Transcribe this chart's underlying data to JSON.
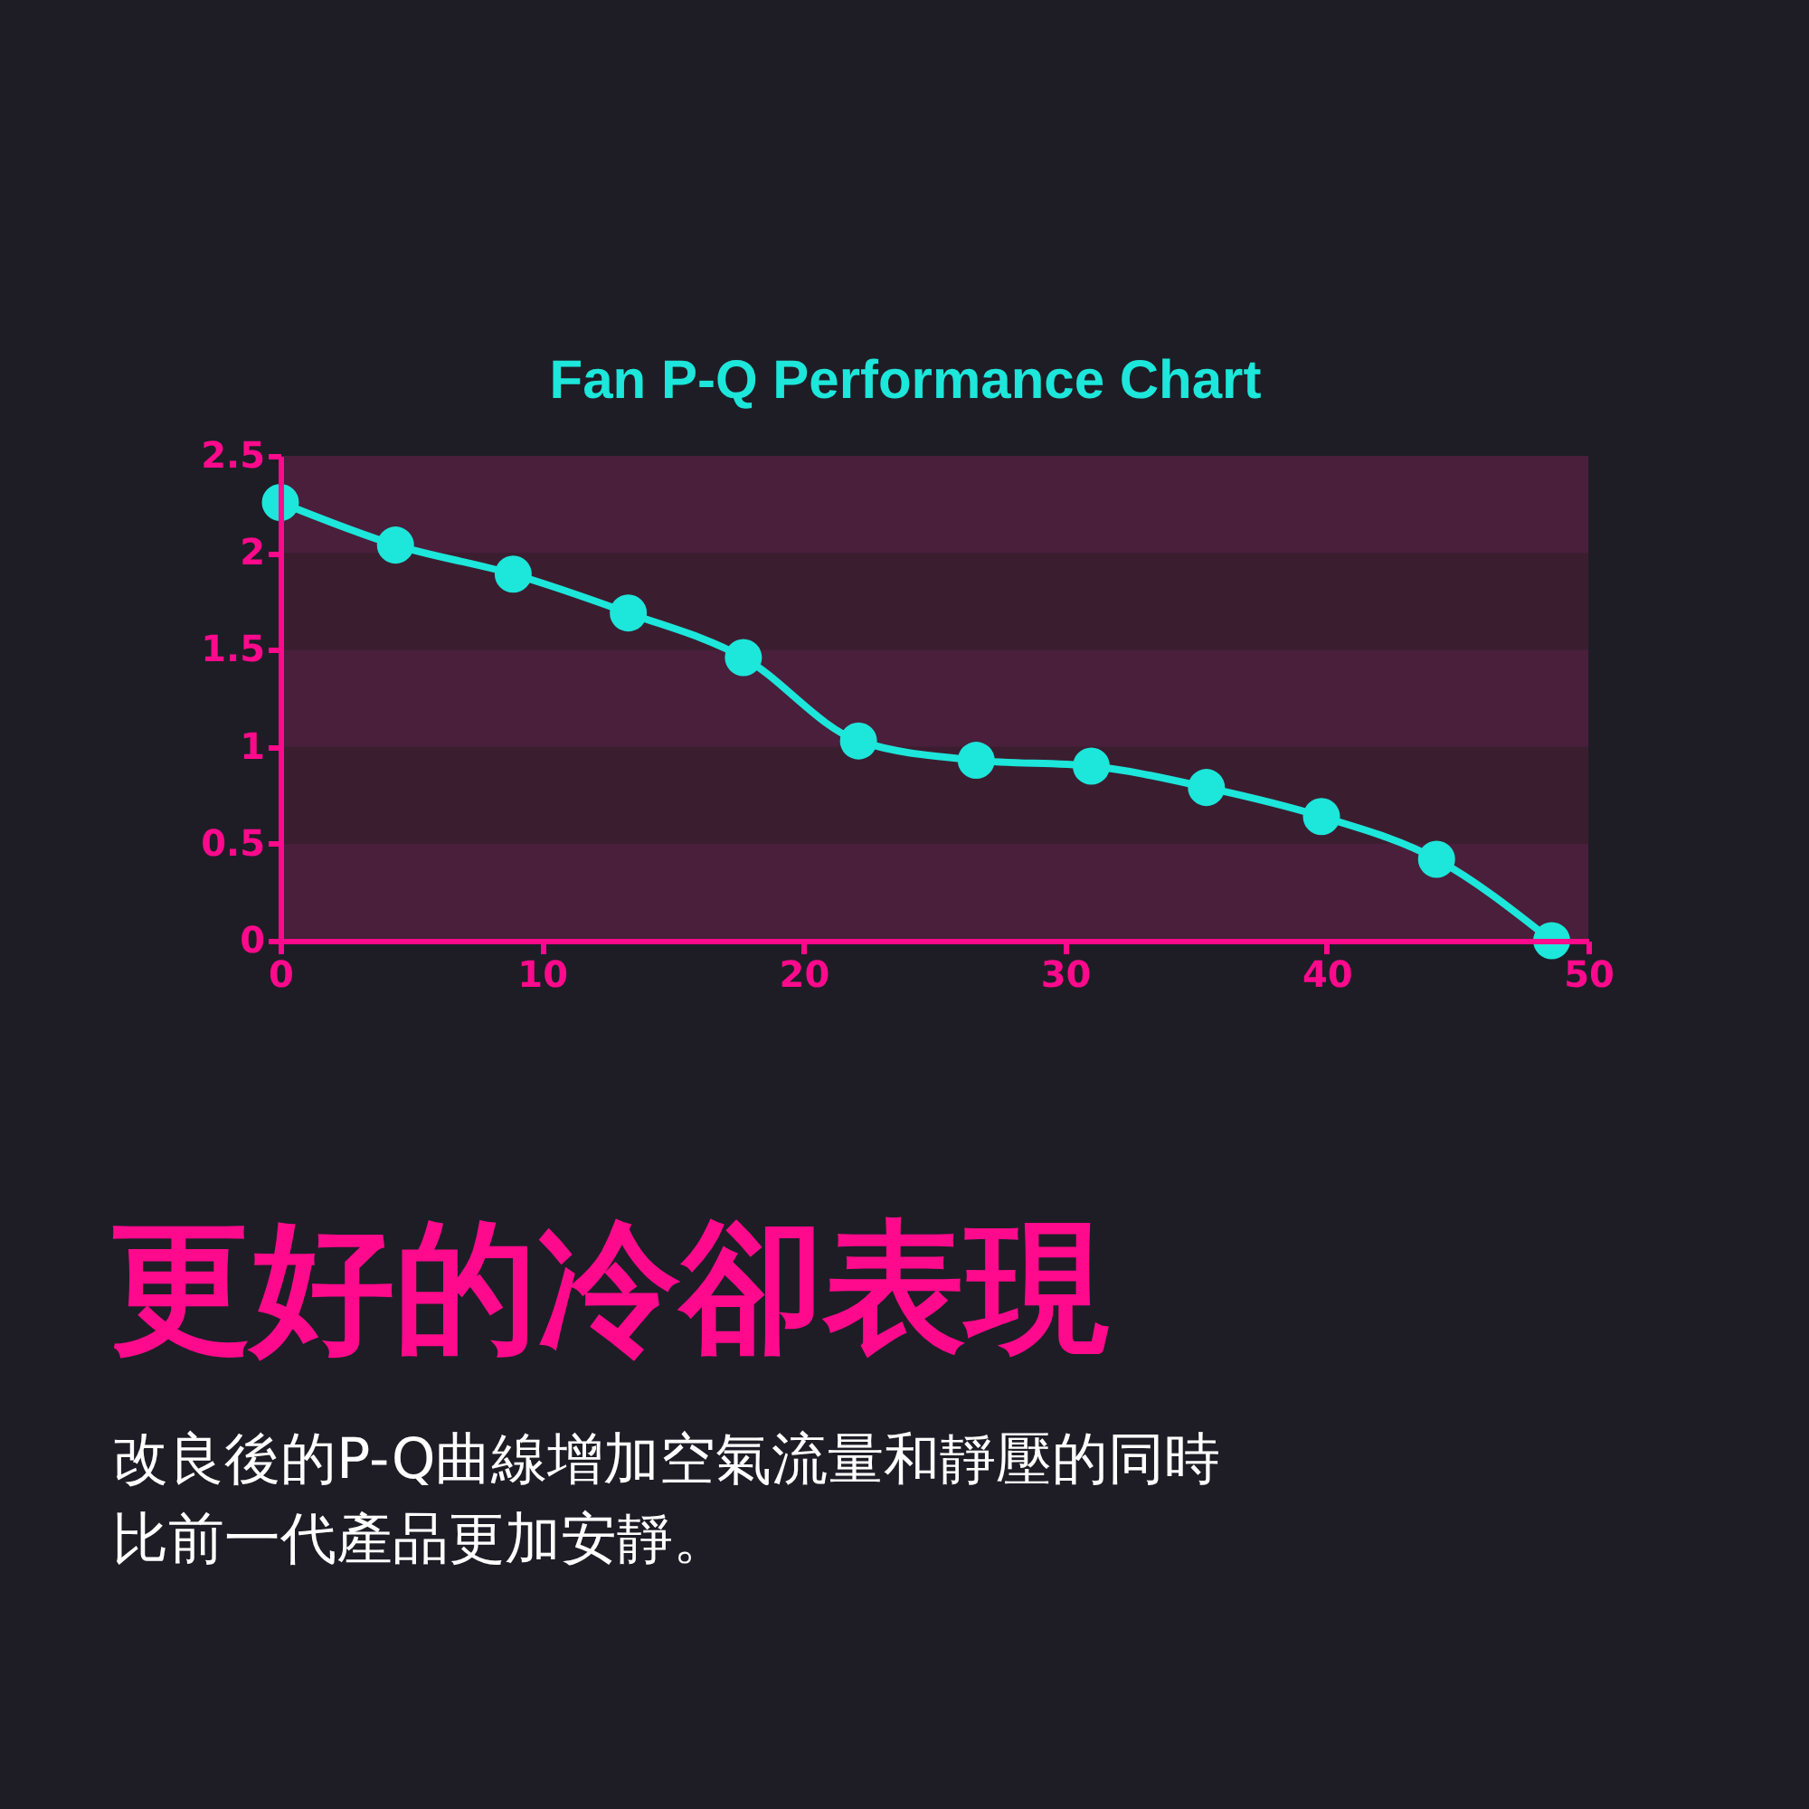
{
  "chart_data": {
    "type": "line",
    "title": "Fan P-Q Performance Chart",
    "x": [
      0,
      4.4,
      8.9,
      13.3,
      17.7,
      22.1,
      26.6,
      31.0,
      35.4,
      39.8,
      44.2,
      48.6
    ],
    "values": [
      2.26,
      2.04,
      1.89,
      1.69,
      1.46,
      1.03,
      0.93,
      0.9,
      0.79,
      0.64,
      0.42,
      0
    ],
    "color": "#1de6da",
    "xlim": [
      0,
      50
    ],
    "xticks": [
      0,
      10,
      20,
      30,
      40,
      50
    ],
    "ylim": [
      0,
      2.5
    ],
    "yticks": [
      0,
      0.5,
      1,
      1.5,
      2,
      2.5
    ],
    "bands": [
      {
        "axis": "y",
        "from": 0,
        "to": 0.5,
        "color": "#4a1f3c"
      },
      {
        "axis": "y",
        "from": 1,
        "to": 1.5,
        "color": "#4a1f3c"
      },
      {
        "axis": "y",
        "from": 2,
        "to": 2.5,
        "color": "#4a1f3c"
      }
    ],
    "grid": false,
    "marker": "circle",
    "line_style": "solid",
    "annotations": [
      "更好的冷卻表現",
      "改良後的P-Q曲線增加空氣流量和靜壓的同時比前一代產品更加安靜。"
    ]
  }
}
